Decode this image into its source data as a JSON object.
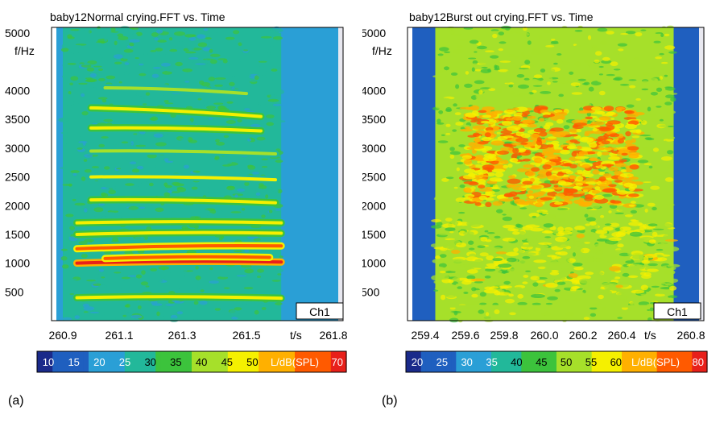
{
  "chart_data": [
    {
      "type": "heatmap",
      "panel": "(a)",
      "title": "baby12Normal crying.FFT vs. Time",
      "ylabel": "f/Hz",
      "xlabel": "t/s",
      "y_ticks": [
        500,
        1000,
        1500,
        2000,
        2500,
        3000,
        3500,
        4000,
        5000
      ],
      "y_tick_labels": [
        "500",
        "1000",
        "1500",
        "2000",
        "2500",
        "3000",
        "3500",
        "4000",
        "5000"
      ],
      "ylim": [
        0,
        5100
      ],
      "x_ticks": [
        260.9,
        261.1,
        261.3,
        261.5,
        261.8
      ],
      "x_tick_labels": [
        "260.9",
        "261.1",
        "261.3",
        "261.5",
        "261.8"
      ],
      "xlim": [
        260.85,
        261.85
      ],
      "channel_label": "Ch1",
      "colorbar": {
        "label": "L/dB(SPL)",
        "ticks": [
          "10",
          "15",
          "20",
          "25",
          "30",
          "35",
          "40",
          "45",
          "50",
          "70"
        ],
        "range": [
          10,
          70
        ]
      },
      "background_level": 26,
      "cry_segment": {
        "x_start": 260.9,
        "x_end": 261.62,
        "level": 32
      },
      "harmonics": [
        {
          "x_start": 260.95,
          "x_end": 261.62,
          "f_start": 400,
          "f_end": 390,
          "level": 48
        },
        {
          "x_start": 260.95,
          "x_end": 261.62,
          "f_start": 1000,
          "f_end": 1020,
          "level": 68
        },
        {
          "x_start": 261.05,
          "x_end": 261.58,
          "f_start": 1080,
          "f_end": 1100,
          "level": 66
        },
        {
          "x_start": 260.95,
          "x_end": 261.62,
          "f_start": 1250,
          "f_end": 1300,
          "level": 64
        },
        {
          "x_start": 260.95,
          "x_end": 261.62,
          "f_start": 1500,
          "f_end": 1520,
          "level": 50
        },
        {
          "x_start": 260.95,
          "x_end": 261.62,
          "f_start": 1700,
          "f_end": 1700,
          "level": 52
        },
        {
          "x_start": 261.0,
          "x_end": 261.6,
          "f_start": 2100,
          "f_end": 2050,
          "level": 48
        },
        {
          "x_start": 261.0,
          "x_end": 261.6,
          "f_start": 2500,
          "f_end": 2450,
          "level": 47
        },
        {
          "x_start": 261.0,
          "x_end": 261.6,
          "f_start": 2950,
          "f_end": 2900,
          "level": 46
        },
        {
          "x_start": 261.0,
          "x_end": 261.55,
          "f_start": 3350,
          "f_end": 3300,
          "level": 48
        },
        {
          "x_start": 261.0,
          "x_end": 261.55,
          "f_start": 3700,
          "f_end": 3550,
          "level": 48
        },
        {
          "x_start": 261.05,
          "x_end": 261.5,
          "f_start": 4050,
          "f_end": 3950,
          "level": 42
        }
      ]
    },
    {
      "type": "heatmap",
      "panel": "(b)",
      "title": "baby12Burst out crying.FFT vs. Time",
      "ylabel": "f/Hz",
      "xlabel": "t/s",
      "y_ticks": [
        500,
        1000,
        1500,
        2000,
        2500,
        3000,
        3500,
        4000,
        5000
      ],
      "y_tick_labels": [
        "500",
        "1000",
        "1500",
        "2000",
        "2500",
        "3000",
        "3500",
        "4000",
        "5000"
      ],
      "ylim": [
        0,
        5100
      ],
      "x_ticks": [
        259.4,
        259.6,
        259.8,
        260.0,
        260.2,
        260.4,
        260.8
      ],
      "x_tick_labels": [
        "259.4",
        "259.6",
        "259.8",
        "260.0",
        "260.2",
        "260.4",
        "260.8"
      ],
      "xlim": [
        259.33,
        260.85
      ],
      "channel_label": "Ch1",
      "colorbar": {
        "label": "L/dB(SPL)",
        "ticks": [
          "20",
          "25",
          "30",
          "35",
          "40",
          "45",
          "50",
          "55",
          "60",
          "80"
        ],
        "range": [
          20,
          80
        ]
      },
      "background_level": 26,
      "cry_segment": {
        "x_start": 259.45,
        "x_end": 260.7,
        "level": 52
      },
      "hot_region": {
        "x_start": 259.6,
        "x_end": 260.5,
        "f_low": 2000,
        "f_high": 3700,
        "level": 68
      },
      "low_band": {
        "f": 250,
        "level": 55
      }
    }
  ],
  "panel_labels": [
    "(a)",
    "(b)"
  ],
  "colors": {
    "colormap": [
      "#1a2a8a",
      "#1f5fbf",
      "#2a9fd6",
      "#22b89a",
      "#3cc33c",
      "#a6e02a",
      "#f5f000",
      "#ffb000",
      "#ff5a00",
      "#e8201a"
    ],
    "background": "#1b2f8c",
    "frame": "#000000"
  }
}
